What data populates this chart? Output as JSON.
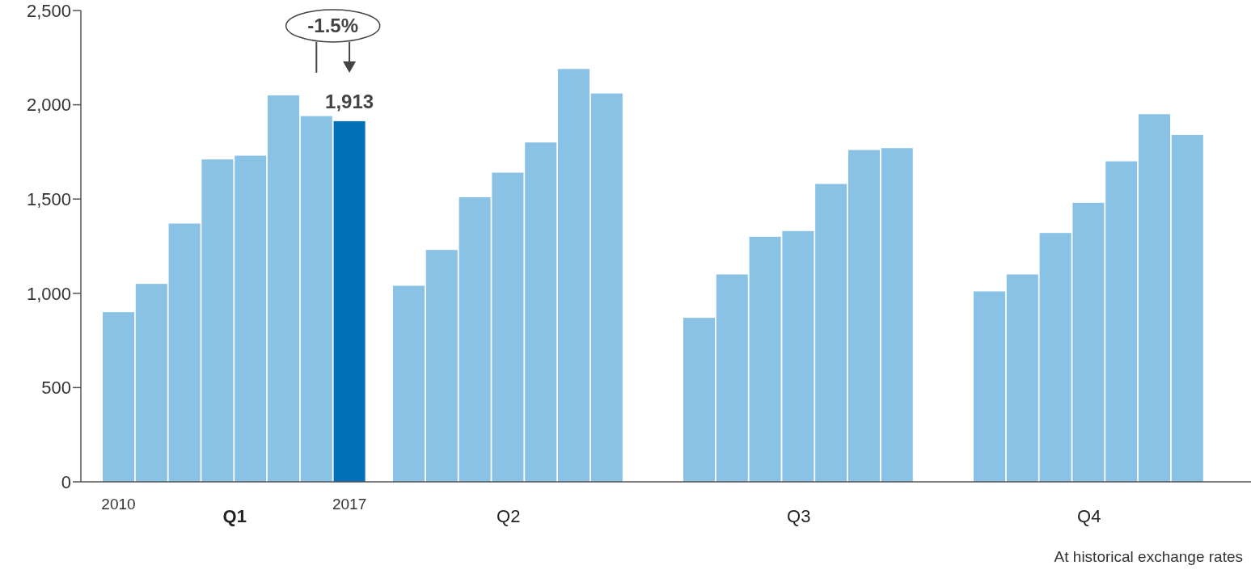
{
  "chart_data": {
    "type": "bar",
    "categories": [
      "Q1",
      "Q2",
      "Q3",
      "Q4"
    ],
    "series": [
      {
        "name": "2010",
        "color": "#89c2e5",
        "values": [
          900,
          1040,
          870,
          1010
        ]
      },
      {
        "color": "#89c2e5",
        "values": [
          1050,
          1230,
          1100,
          1100
        ]
      },
      {
        "color": "#89c2e5",
        "values": [
          1370,
          1510,
          1300,
          1320
        ]
      },
      {
        "color": "#89c2e5",
        "values": [
          1710,
          1640,
          1330,
          1480
        ]
      },
      {
        "color": "#89c2e5",
        "values": [
          1730,
          1800,
          1580,
          1700
        ]
      },
      {
        "color": "#89c2e5",
        "values": [
          2050,
          2190,
          1760,
          1950
        ]
      },
      {
        "color": "#89c2e5",
        "values": [
          1940,
          2060,
          1770,
          1840
        ]
      },
      {
        "name": "2017",
        "color": "#0070b8",
        "values": [
          1913,
          null,
          null,
          null
        ],
        "value_labels": [
          "1,913",
          null,
          null,
          null
        ]
      }
    ],
    "ylim": [
      0,
      2500
    ],
    "yticks": [
      0,
      {
        "value": 500,
        "label": "500"
      },
      {
        "value": 1000,
        "label": "1,000"
      },
      {
        "value": 1500,
        "label": "1,500"
      },
      {
        "value": 2000,
        "label": "2,000"
      },
      {
        "value": 2500,
        "label": "2,500"
      }
    ],
    "grid": false,
    "annotations": [
      "-1.5%",
      "At historical exchange rates"
    ]
  }
}
